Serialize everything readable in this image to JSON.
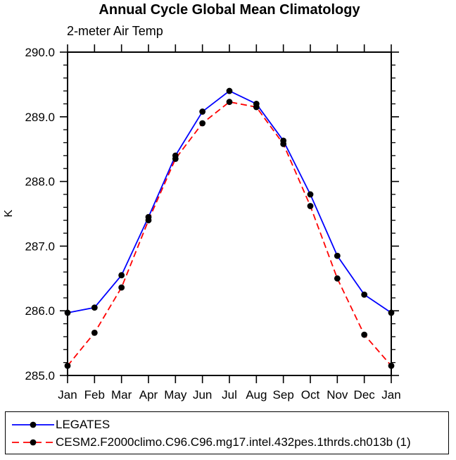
{
  "chart_data": {
    "type": "line",
    "title": "Annual Cycle Global Mean Climatology",
    "subtitle": "2-meter Air Temp",
    "ylabel": "K",
    "xlabel": "",
    "categories": [
      "Jan",
      "Feb",
      "Mar",
      "Apr",
      "May",
      "Jun",
      "Jul",
      "Aug",
      "Sep",
      "Oct",
      "Nov",
      "Dec",
      "Jan"
    ],
    "ylim": [
      285.0,
      290.0
    ],
    "y_major_tick_labels": [
      "285.0",
      "286.0",
      "287.0",
      "288.0",
      "289.0",
      "290.0"
    ],
    "y_minor_tick_step": 0.2,
    "grid": "off",
    "legend_position": "bottom-box",
    "series": [
      {
        "name": "LEGATES",
        "color": "#0000ff",
        "line_style": "solid",
        "marker": "filled-black-circle",
        "values": [
          285.97,
          286.05,
          286.55,
          287.45,
          288.4,
          289.08,
          289.4,
          289.2,
          288.63,
          287.8,
          286.85,
          286.25,
          285.97
        ]
      },
      {
        "name": "CESM2.F2000climo.C96.C96.mg17.intel.432pes.1thrds.ch013b (1)",
        "color": "#ff0000",
        "line_style": "dashed",
        "marker": "filled-black-circle",
        "values": [
          285.15,
          285.66,
          286.36,
          287.4,
          288.35,
          288.9,
          289.23,
          289.15,
          288.58,
          287.62,
          286.5,
          285.63,
          285.15
        ]
      }
    ]
  },
  "colors": {
    "axis": "#000000",
    "background": "#ffffff",
    "marker": "#000000",
    "series_blue": "#0000ff",
    "series_red": "#ff0000"
  }
}
